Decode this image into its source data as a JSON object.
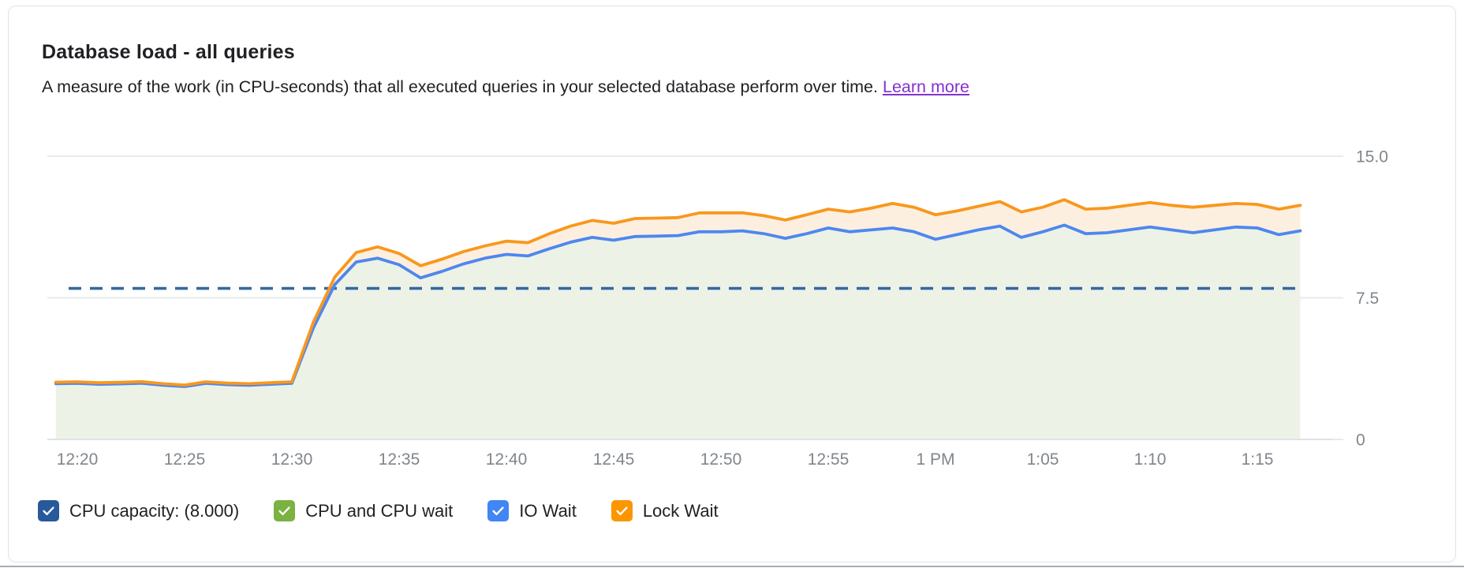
{
  "header": {
    "title": "Database load - all queries",
    "description": "A measure of the work (in CPU-seconds) that all executed queries in your selected database perform over time.",
    "learn_more": "Learn more"
  },
  "colors": {
    "title_text": "#202124",
    "link_purple": "#8430ce",
    "axis_label": "#80868b",
    "gridline": "#e8eaec",
    "baseline": "#e0e2e5",
    "capacity_dash": "#35689f",
    "blue_line": "#4e87ee",
    "orange_line": "#f8981d",
    "green_fill": "#edf2e7",
    "peach_fill": "#fdefdf",
    "card_border": "#dfe1e5"
  },
  "legend": {
    "items": [
      {
        "label": "CPU capacity: (8.000)",
        "color": "#27599b",
        "checked": true
      },
      {
        "label": "CPU and CPU wait",
        "color": "#7bb241",
        "checked": true
      },
      {
        "label": "IO Wait",
        "color": "#4285f4",
        "checked": true
      },
      {
        "label": "Lock Wait",
        "color": "#fb9600",
        "checked": true
      }
    ]
  },
  "chart_data": {
    "type": "area",
    "title": "Database load - all queries",
    "xlabel": "",
    "ylabel": "",
    "stacked": true,
    "grid": true,
    "legend_position": "bottom",
    "ylim": [
      0,
      16.6
    ],
    "y_ticks": [
      {
        "value": 15,
        "label": "15.0"
      },
      {
        "value": 7.5,
        "label": "7.5"
      },
      {
        "value": 0,
        "label": "0"
      }
    ],
    "x_tick_labels": [
      "12:20",
      "12:25",
      "12:30",
      "12:35",
      "12:40",
      "12:45",
      "12:50",
      "12:55",
      "1 PM",
      "1:05",
      "1:10",
      "1:15"
    ],
    "x_tick_minutes": [
      0,
      5,
      10,
      15,
      20,
      25,
      30,
      35,
      40,
      45,
      50,
      55
    ],
    "capacity": {
      "label": "CPU capacity: (8.000)",
      "value": 8.0
    },
    "samples_start_minute": -1,
    "samples_step_minute": 1,
    "series": [
      {
        "name": "CPU and CPU wait + IO Wait (cumulative, blue line / green area)",
        "legend_name": "IO Wait",
        "values": [
          2.95,
          2.97,
          2.92,
          2.94,
          2.98,
          2.87,
          2.8,
          2.97,
          2.9,
          2.87,
          2.92,
          2.97,
          5.9,
          8.2,
          9.4,
          9.6,
          9.25,
          8.56,
          8.9,
          9.3,
          9.6,
          9.8,
          9.72,
          10.1,
          10.45,
          10.7,
          10.55,
          10.75,
          10.77,
          10.8,
          11.0,
          11.0,
          11.05,
          10.9,
          10.65,
          10.9,
          11.2,
          11.0,
          11.1,
          11.2,
          11.0,
          10.6,
          10.85,
          11.1,
          11.3,
          10.7,
          11.0,
          11.35,
          10.9,
          10.95,
          11.1,
          11.25,
          11.1,
          10.95,
          11.1,
          11.25,
          11.2,
          10.85,
          11.05
        ]
      },
      {
        "name": "Total load incl. Lock Wait (cumulative, orange line / peach band)",
        "legend_name": "Lock Wait",
        "values": [
          3.03,
          3.05,
          3.0,
          3.02,
          3.06,
          2.95,
          2.88,
          3.05,
          2.98,
          2.95,
          3.0,
          3.05,
          6.2,
          8.6,
          9.9,
          10.2,
          9.85,
          9.2,
          9.55,
          9.95,
          10.25,
          10.5,
          10.42,
          10.9,
          11.3,
          11.6,
          11.45,
          11.7,
          11.72,
          11.75,
          12.0,
          12.0,
          12.0,
          11.85,
          11.62,
          11.9,
          12.2,
          12.05,
          12.25,
          12.5,
          12.3,
          11.9,
          12.1,
          12.35,
          12.6,
          12.05,
          12.3,
          12.7,
          12.2,
          12.25,
          12.4,
          12.55,
          12.4,
          12.3,
          12.4,
          12.5,
          12.45,
          12.2,
          12.4
        ]
      }
    ]
  }
}
